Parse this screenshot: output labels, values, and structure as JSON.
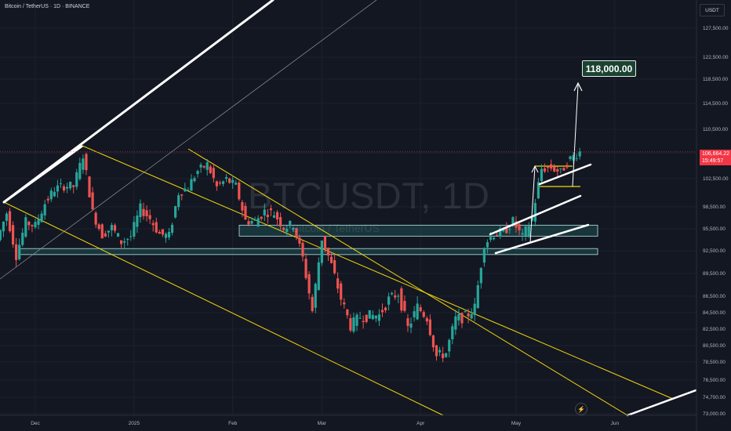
{
  "header": {
    "symbol_title": "Bitcoin / TetherUS · 1D · BINANCE",
    "currency": "USDT"
  },
  "watermark": {
    "main": "BTCUSDT, 1D",
    "sub": "Bitcoin / TetherUS"
  },
  "annotation": {
    "target_label": "118,000.00"
  },
  "price_tag": {
    "price": "106,664.22",
    "countdown": "15:49:57"
  },
  "logo": {
    "icon": "lightning-icon"
  },
  "colors": {
    "background": "#131722",
    "up": "#26a69a",
    "down": "#ef5350",
    "channel": "#f5d70a",
    "trendline": "#ffffff",
    "zone_fill": "#1d5c5c",
    "target_box": "#1b4332"
  },
  "chart_data": {
    "type": "candlestick",
    "title": "Bitcoin / TetherUS · 1D · BINANCE",
    "y_ticks": [
      "127,500.00",
      "122,500.00",
      "118,500.00",
      "114,500.00",
      "110,500.00",
      "106,500.00",
      "102,500.00",
      "98,500.00",
      "95,500.00",
      "92,500.00",
      "89,500.00",
      "86,500.00",
      "84,500.00",
      "82,500.00",
      "80,500.00",
      "78,500.00",
      "76,500.00",
      "74,700.00",
      "73,000.00"
    ],
    "x_ticks": [
      "Dec",
      "2025",
      "Feb",
      "Mar",
      "Apr",
      "May",
      "Jun"
    ],
    "last_price": 106664.22,
    "target": 118000,
    "zones": [
      {
        "from": 94500,
        "to": 96000
      },
      {
        "from": 92000,
        "to": 92800
      }
    ],
    "series_close": [
      {
        "d": "2024-11-20",
        "c": 94000
      },
      {
        "d": "2024-11-23",
        "c": 97700
      },
      {
        "d": "2024-11-26",
        "c": 91900
      },
      {
        "d": "2024-11-29",
        "c": 96400
      },
      {
        "d": "2024-12-02",
        "c": 95900
      },
      {
        "d": "2024-12-05",
        "c": 99000
      },
      {
        "d": "2024-12-08",
        "c": 101000
      },
      {
        "d": "2024-12-11",
        "c": 101500
      },
      {
        "d": "2024-12-14",
        "c": 101400
      },
      {
        "d": "2024-12-17",
        "c": 106100
      },
      {
        "d": "2024-12-20",
        "c": 97700
      },
      {
        "d": "2024-12-23",
        "c": 94700
      },
      {
        "d": "2024-12-26",
        "c": 95700
      },
      {
        "d": "2024-12-29",
        "c": 93700
      },
      {
        "d": "2025-01-01",
        "c": 94500
      },
      {
        "d": "2025-01-04",
        "c": 98300
      },
      {
        "d": "2025-01-07",
        "c": 96900
      },
      {
        "d": "2025-01-10",
        "c": 94800
      },
      {
        "d": "2025-01-13",
        "c": 94500
      },
      {
        "d": "2025-01-16",
        "c": 100500
      },
      {
        "d": "2025-01-19",
        "c": 101300
      },
      {
        "d": "2025-01-22",
        "c": 103700
      },
      {
        "d": "2025-01-25",
        "c": 104700
      },
      {
        "d": "2025-01-28",
        "c": 101300
      },
      {
        "d": "2025-01-31",
        "c": 102400
      },
      {
        "d": "2025-02-03",
        "c": 101400
      },
      {
        "d": "2025-02-06",
        "c": 96600
      },
      {
        "d": "2025-02-09",
        "c": 96500
      },
      {
        "d": "2025-02-12",
        "c": 97900
      },
      {
        "d": "2025-02-15",
        "c": 97600
      },
      {
        "d": "2025-02-18",
        "c": 95700
      },
      {
        "d": "2025-02-21",
        "c": 96100
      },
      {
        "d": "2025-02-24",
        "c": 91500
      },
      {
        "d": "2025-02-27",
        "c": 84700
      },
      {
        "d": "2025-03-02",
        "c": 94200
      },
      {
        "d": "2025-03-05",
        "c": 90600
      },
      {
        "d": "2025-03-08",
        "c": 86200
      },
      {
        "d": "2025-03-11",
        "c": 82900
      },
      {
        "d": "2025-03-14",
        "c": 84000
      },
      {
        "d": "2025-03-17",
        "c": 84100
      },
      {
        "d": "2025-03-20",
        "c": 84200
      },
      {
        "d": "2025-03-23",
        "c": 86100
      },
      {
        "d": "2025-03-26",
        "c": 86900
      },
      {
        "d": "2025-03-29",
        "c": 82600
      },
      {
        "d": "2025-04-01",
        "c": 85200
      },
      {
        "d": "2025-04-04",
        "c": 83900
      },
      {
        "d": "2025-04-07",
        "c": 79200
      },
      {
        "d": "2025-04-10",
        "c": 79600
      },
      {
        "d": "2025-04-13",
        "c": 83700
      },
      {
        "d": "2025-04-16",
        "c": 84000
      },
      {
        "d": "2025-04-19",
        "c": 85100
      },
      {
        "d": "2025-04-22",
        "c": 93500
      },
      {
        "d": "2025-04-25",
        "c": 94800
      },
      {
        "d": "2025-04-28",
        "c": 95000
      },
      {
        "d": "2025-05-01",
        "c": 96500
      },
      {
        "d": "2025-05-04",
        "c": 94300
      },
      {
        "d": "2025-05-07",
        "c": 97000
      },
      {
        "d": "2025-05-10",
        "c": 104000
      },
      {
        "d": "2025-05-13",
        "c": 104200
      },
      {
        "d": "2025-05-16",
        "c": 103500
      },
      {
        "d": "2025-05-19",
        "c": 105600
      },
      {
        "d": "2025-05-22",
        "c": 106664
      }
    ]
  }
}
